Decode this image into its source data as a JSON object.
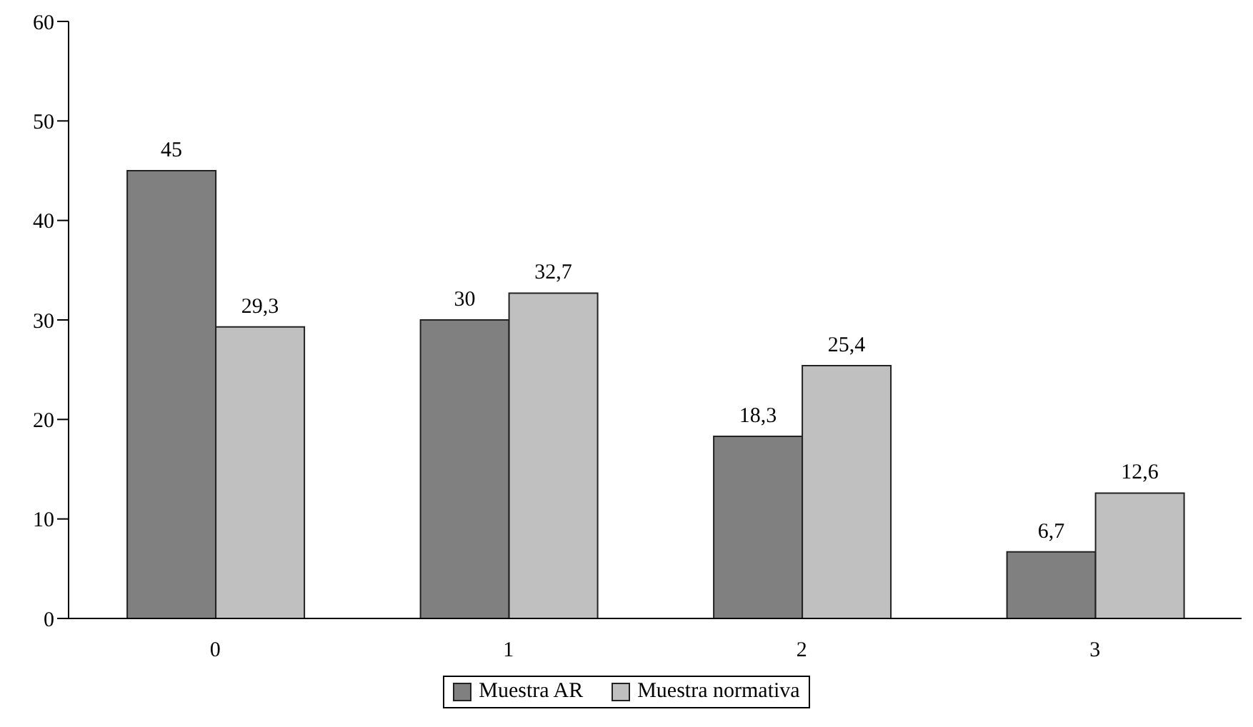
{
  "chart_data": {
    "type": "bar",
    "categories": [
      "0",
      "1",
      "2",
      "3"
    ],
    "series": [
      {
        "name": "Muestra AR",
        "color": "#808080",
        "values": [
          45,
          30,
          18.3,
          6.7
        ],
        "value_labels": [
          "45",
          "30",
          "18,3",
          "6,7"
        ]
      },
      {
        "name": "Muestra normativa",
        "color": "#c0c0c0",
        "values": [
          29.3,
          32.7,
          25.4,
          12.6
        ],
        "value_labels": [
          "29,3",
          "32,7",
          "25,4",
          "12,6"
        ]
      }
    ],
    "ylim": [
      0,
      60
    ],
    "yticks": [
      0,
      10,
      20,
      30,
      40,
      50,
      60
    ],
    "grid": false,
    "legend": "bottom"
  }
}
